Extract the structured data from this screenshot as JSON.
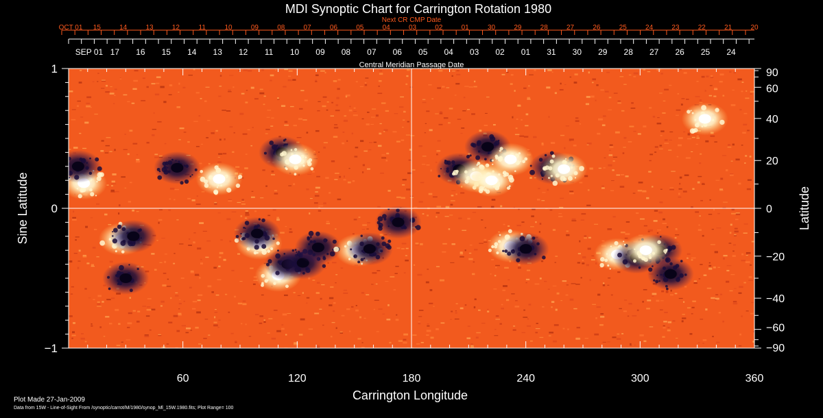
{
  "chart_data": {
    "type": "heatmap",
    "title": "MDI Synoptic Chart for Carrington Rotation 1980",
    "next_cr_label": "Next CR CMP Date",
    "cmp_label": "Central Meridian Passage Date",
    "xlabel": "Carrington Longitude",
    "ylabel_left": "Sine Latitude",
    "ylabel_right": "Latitude",
    "xlim": [
      0,
      360
    ],
    "ylim": [
      -1,
      1
    ],
    "x_ticks": [
      "60",
      "120",
      "180",
      "240",
      "300",
      "360"
    ],
    "x_tick_values": [
      60,
      120,
      180,
      240,
      300,
      360
    ],
    "y_ticks_left": [
      "1",
      "0",
      "−1"
    ],
    "y_tick_values_left": [
      1,
      0,
      -1
    ],
    "y_ticks_right": [
      "90",
      "60",
      "40",
      "20",
      "0",
      "−20",
      "−40",
      "−60",
      "−90"
    ],
    "y_tick_values_right": [
      90,
      60,
      40,
      20,
      0,
      -20,
      -40,
      -60,
      -90
    ],
    "next_cr_dates": [
      "OCT 01",
      "15",
      "14",
      "13",
      "12",
      "11",
      "10",
      "09",
      "08",
      "07",
      "06",
      "05",
      "04",
      "03",
      "02",
      "01",
      "30",
      "29",
      "28",
      "27",
      "26",
      "25",
      "24",
      "23",
      "22",
      "21",
      "20"
    ],
    "cmp_dates": [
      "SEP 01",
      "17",
      "16",
      "15",
      "14",
      "13",
      "12",
      "11",
      "10",
      "09",
      "08",
      "07",
      "06",
      "05",
      "04",
      "03",
      "02",
      "01",
      "31",
      "30",
      "29",
      "28",
      "27",
      "26",
      "25",
      "24"
    ],
    "crosshair": {
      "longitude": 180,
      "sine_latitude": 0
    },
    "active_regions": [
      {
        "lon": 8,
        "sinlat": 0.18,
        "polarity": "positive"
      },
      {
        "lon": 5,
        "sinlat": 0.3,
        "polarity": "negative"
      },
      {
        "lon": 28,
        "sinlat": -0.22,
        "polarity": "positive"
      },
      {
        "lon": 34,
        "sinlat": -0.2,
        "polarity": "negative"
      },
      {
        "lon": 30,
        "sinlat": -0.5,
        "polarity": "negative"
      },
      {
        "lon": 57,
        "sinlat": 0.29,
        "polarity": "negative"
      },
      {
        "lon": 79,
        "sinlat": 0.21,
        "polarity": "positive"
      },
      {
        "lon": 112,
        "sinlat": 0.4,
        "polarity": "negative"
      },
      {
        "lon": 119,
        "sinlat": 0.35,
        "polarity": "positive"
      },
      {
        "lon": 100,
        "sinlat": -0.25,
        "polarity": "positive"
      },
      {
        "lon": 99,
        "sinlat": -0.18,
        "polarity": "negative"
      },
      {
        "lon": 110,
        "sinlat": -0.48,
        "polarity": "positive"
      },
      {
        "lon": 115,
        "sinlat": -0.4,
        "polarity": "negative"
      },
      {
        "lon": 123,
        "sinlat": -0.39,
        "polarity": "negative"
      },
      {
        "lon": 131,
        "sinlat": -0.28,
        "polarity": "negative"
      },
      {
        "lon": 152,
        "sinlat": -0.3,
        "polarity": "positive"
      },
      {
        "lon": 158,
        "sinlat": -0.29,
        "polarity": "negative"
      },
      {
        "lon": 173,
        "sinlat": -0.1,
        "polarity": "negative"
      },
      {
        "lon": 205,
        "sinlat": 0.28,
        "polarity": "negative"
      },
      {
        "lon": 214,
        "sinlat": 0.23,
        "polarity": "positive"
      },
      {
        "lon": 222,
        "sinlat": 0.2,
        "polarity": "positive"
      },
      {
        "lon": 220,
        "sinlat": 0.44,
        "polarity": "negative"
      },
      {
        "lon": 232,
        "sinlat": 0.35,
        "polarity": "positive"
      },
      {
        "lon": 254,
        "sinlat": 0.29,
        "polarity": "negative"
      },
      {
        "lon": 260,
        "sinlat": 0.28,
        "polarity": "positive"
      },
      {
        "lon": 232,
        "sinlat": -0.27,
        "polarity": "positive"
      },
      {
        "lon": 240,
        "sinlat": -0.29,
        "polarity": "negative"
      },
      {
        "lon": 288,
        "sinlat": -0.33,
        "polarity": "positive"
      },
      {
        "lon": 298,
        "sinlat": -0.35,
        "polarity": "negative"
      },
      {
        "lon": 310,
        "sinlat": -0.3,
        "polarity": "negative"
      },
      {
        "lon": 303,
        "sinlat": -0.3,
        "polarity": "positive"
      },
      {
        "lon": 316,
        "sinlat": -0.47,
        "polarity": "negative"
      },
      {
        "lon": 334,
        "sinlat": 0.64,
        "polarity": "positive"
      }
    ]
  },
  "footer": {
    "plot_made": "Plot Made 27-Jan-2009",
    "source": "Data from 15W - Line-of-Sight From /synoptic/carrot/M/1980/synop_Ml_15W.1980.fits; Plot Range=  100"
  },
  "colors": {
    "background": "#000000",
    "field_base": "#f25a1e",
    "positive": "#fff7d6",
    "negative": "#1c0f3d",
    "accent_text": "#ff5a1e",
    "text": "#ffffff"
  }
}
